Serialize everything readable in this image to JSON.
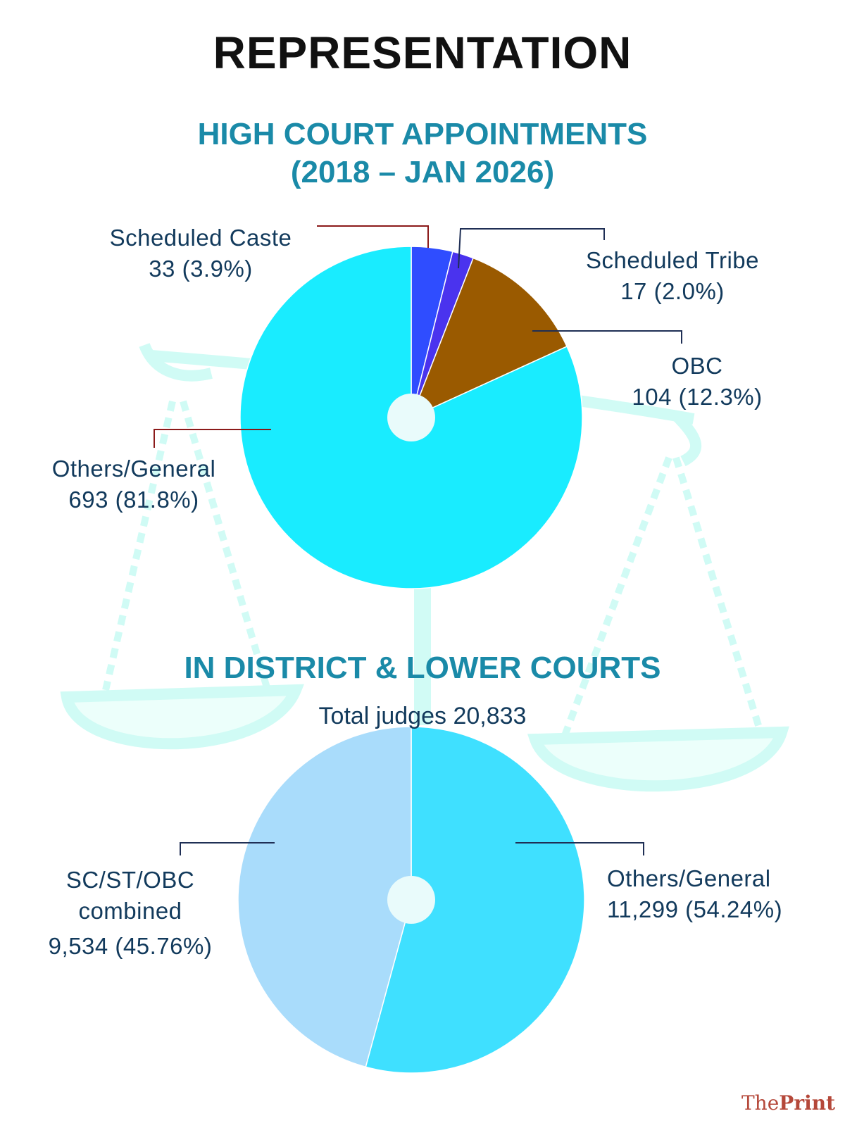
{
  "chart_data": [
    {
      "type": "pie",
      "title": "HIGH COURT APPOINTMENTS",
      "subtitle": "(2018 – JAN 2026)",
      "categories": [
        "Scheduled Caste",
        "Scheduled Tribe",
        "OBC",
        "Others/General"
      ],
      "values": [
        33,
        17,
        104,
        693
      ],
      "value_labels": [
        "33 (3.9%)",
        "17 (2.0%)",
        "104 (12.3%)",
        "693 (81.8%)"
      ],
      "colors": [
        "#2f4dff",
        "#4a33ee",
        "#9a5a00",
        "#19ecff"
      ]
    },
    {
      "type": "pie",
      "title": "IN DISTRICT & LOWER COURTS",
      "subtitle": "Total judges 20,833",
      "categories": [
        "Others/General",
        "SC/ST/OBC combined"
      ],
      "values": [
        11299,
        9534
      ],
      "value_labels": [
        "11,299 (54.24%)",
        "9,534 (45.76%)"
      ],
      "colors": [
        "#3fe0ff",
        "#a9dcfb"
      ]
    }
  ],
  "page": {
    "heading": "REPRESENTATION",
    "hc_title": "HIGH COURT APPOINTMENTS",
    "hc_period": "(2018 – JAN 2026)",
    "dc_title": "IN DISTRICT & LOWER COURTS",
    "dc_total": "Total judges 20,833",
    "hc_labels": {
      "sc_name": "Scheduled Caste",
      "sc_value": "33 (3.9%)",
      "st_name": "Scheduled Tribe",
      "st_value": "17 (2.0%)",
      "obc_name": "OBC",
      "obc_value": "104 (12.3%)",
      "gen_name": "Others/General",
      "gen_value": "693 (81.8%)"
    },
    "dc_labels": {
      "comb_name_1": "SC/ST/OBC",
      "comb_name_2": "combined",
      "comb_value": "9,534 (45.76%)",
      "gen_name": "Others/General",
      "gen_value": "11,299 (54.24%)"
    },
    "brand": {
      "the": "The",
      "print": "Print"
    }
  }
}
